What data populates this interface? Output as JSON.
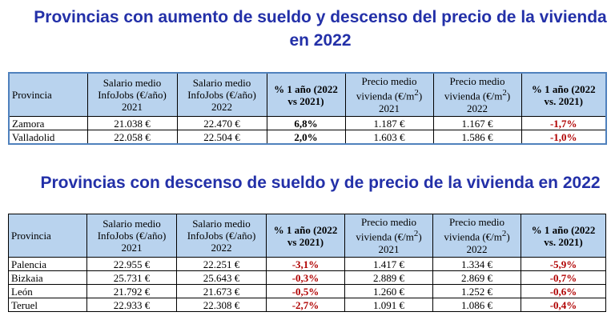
{
  "title1": "Provincias con aumento de sueldo y descenso del precio de la vivienda en 2022",
  "title2": "Provincias con descenso de sueldo y de precio de la vivienda en 2022",
  "headers": {
    "provincia": "Provincia",
    "salario2021_l1": "Salario medio",
    "salario2021_l2": "InfoJobs (€/año)",
    "salario2021_l3": "2021",
    "salario2022_l1": "Salario medio",
    "salario2022_l2": "InfoJobs (€/año)",
    "salario2022_l3": "2022",
    "pct1_t1_l1": "% 1 año (2022",
    "pct1_t1_l2": "vs 2021)",
    "precio2021_l1": "Precio medio",
    "precio2021_l2": "vivienda (€/m",
    "precio2021_sup": "2",
    "precio2021_l2b": ")",
    "precio2021_l3": "2021",
    "precio2022_l1": "Precio medio",
    "precio2022_l2": "vivienda (€/m",
    "precio2022_sup": "2",
    "precio2022_l2b": ")",
    "precio2022_l3": "2022",
    "pct2_l1": "% 1 año (2022",
    "pct2_l2": "vs. 2021)"
  },
  "table1_rows": [
    {
      "provincia": "Zamora",
      "sal2021": "21.038 €",
      "sal2022": "22.470 €",
      "pct_sal": "6,8%",
      "precio2021": "1.187 €",
      "precio2022": "1.167 €",
      "pct_precio": "-1,7%"
    },
    {
      "provincia": "Valladolid",
      "sal2021": "22.058 €",
      "sal2022": "22.504 €",
      "pct_sal": "2,0%",
      "precio2021": "1.603 €",
      "precio2022": "1.586 €",
      "pct_precio": "-1,0%"
    }
  ],
  "table2_rows": [
    {
      "provincia": "Palencia",
      "sal2021": "22.955 €",
      "sal2022": "22.251 €",
      "pct_sal": "-3,1%",
      "precio2021": "1.417 €",
      "precio2022": "1.334 €",
      "pct_precio": "-5,9%"
    },
    {
      "provincia": "Bizkaia",
      "sal2021": "25.731 €",
      "sal2022": "25.643 €",
      "pct_sal": "-0,3%",
      "precio2021": "2.889 €",
      "precio2022": "2.869 €",
      "pct_precio": "-0,7%"
    },
    {
      "provincia": "León",
      "sal2021": "21.792 €",
      "sal2022": "21.673 €",
      "pct_sal": "-0,5%",
      "precio2021": "1.260 €",
      "precio2022": "1.252 €",
      "pct_precio": "-0,6%"
    },
    {
      "provincia": "Teruel",
      "sal2021": "22.933 €",
      "sal2022": "22.308 €",
      "pct_sal": "-2,7%",
      "precio2021": "1.091 €",
      "precio2022": "1.086 €",
      "pct_precio": "-0,4%"
    }
  ],
  "colors": {
    "title": "#2330a8",
    "header_bg": "#b9d3ee",
    "negative": "#b00000"
  }
}
